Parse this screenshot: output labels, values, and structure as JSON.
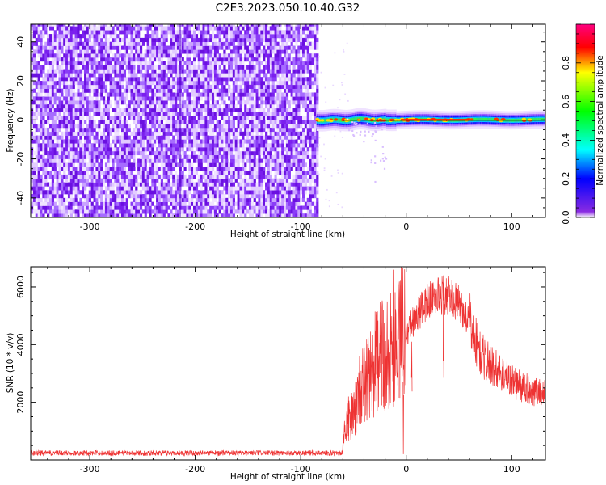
{
  "title": "C2E3.2023.050.10.40.G32",
  "chart_data": [
    {
      "type": "heatmap",
      "xlabel": "Height of straight line (km)",
      "ylabel": "Frequency (Hz)",
      "xlim": [
        -356,
        132
      ],
      "ylim": [
        -50,
        49
      ],
      "x_ticks": [
        -300,
        -200,
        -100,
        0,
        100
      ],
      "x_tick_labels": [
        "-300",
        "-200",
        "-100",
        "0",
        "100"
      ],
      "y_ticks": [
        -40,
        -20,
        0,
        20,
        40
      ],
      "y_tick_labels": [
        "-40",
        "-20",
        "0",
        "20",
        "40"
      ],
      "colorbar": {
        "label": "Normalized spectral amplitude",
        "range": [
          0,
          1
        ],
        "ticks": [
          0,
          0.2,
          0.4,
          0.6,
          0.8
        ],
        "tick_labels": [
          "0.0",
          "0.2",
          "0.4",
          "0.6",
          "0.8"
        ],
        "colormap": [
          "#ffffff",
          "#8a2be2",
          "#0000ff",
          "#00ffff",
          "#00ff00",
          "#ffff00",
          "#ff0000",
          "#ff00aa"
        ]
      },
      "noise_region_x": [
        -356,
        -85
      ],
      "signal_band": {
        "x": [
          -85,
          132
        ],
        "center_freq": 0,
        "halfwidth_hz": 2.5,
        "reference_line_x": [
          -60,
          132
        ],
        "diffuse_tail": [
          [
            -50,
            -8
          ],
          [
            -35,
            -22
          ],
          [
            -25,
            -32
          ]
        ],
        "hot_spots": [
          -82,
          -70,
          -55,
          -40,
          -28,
          -22,
          -10,
          0,
          10,
          25,
          40,
          60,
          90,
          115
        ]
      }
    },
    {
      "type": "line",
      "xlabel": "Height of straight line (km)",
      "ylabel": "SNR (10 * v/v)",
      "xlim": [
        -356,
        132
      ],
      "ylim": [
        0,
        6700
      ],
      "x_ticks": [
        -300,
        -200,
        -100,
        0,
        100
      ],
      "x_tick_labels": [
        "-300",
        "-200",
        "-100",
        "0",
        "100"
      ],
      "y_ticks": [
        2000,
        4000,
        6000
      ],
      "y_tick_labels": [
        "2000",
        "4000",
        "6000"
      ],
      "series": [
        {
          "color": "#ee3333",
          "envelope": [
            [
              -356,
              180
            ],
            [
              -100,
              200
            ],
            [
              -62,
              220
            ],
            [
              -58,
              1200
            ],
            [
              -50,
              1600
            ],
            [
              -45,
              2300
            ],
            [
              -35,
              3000
            ],
            [
              -25,
              3600
            ],
            [
              -15,
              3800
            ],
            [
              -10,
              4200
            ],
            [
              -5,
              4500
            ],
            [
              0,
              4500
            ],
            [
              10,
              5000
            ],
            [
              20,
              5500
            ],
            [
              30,
              5700
            ],
            [
              40,
              5700
            ],
            [
              50,
              5400
            ],
            [
              60,
              4800
            ],
            [
              70,
              3700
            ],
            [
              80,
              3300
            ],
            [
              95,
              2900
            ],
            [
              110,
              2500
            ],
            [
              132,
              2300
            ]
          ],
          "spikes": [
            [
              -12,
              6600
            ],
            [
              -8,
              6200
            ],
            [
              -22,
              5200
            ],
            [
              -28,
              4900
            ],
            [
              -40,
              3900
            ],
            [
              -48,
              2900
            ],
            [
              -55,
              2200
            ],
            [
              35,
              6400
            ],
            [
              -3,
              200
            ],
            [
              5,
              4100
            ]
          ]
        }
      ]
    }
  ]
}
